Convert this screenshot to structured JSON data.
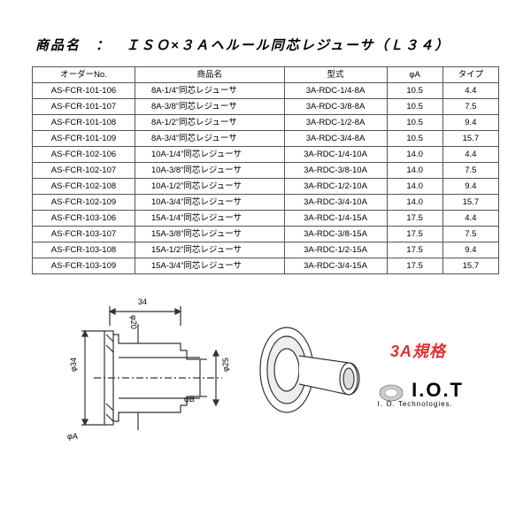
{
  "title": "商品名　：　ＩＳＯ×３Ａヘルール同芯レジューサ（Ｌ３４）",
  "columns": [
    "オーダーNo.",
    "商品名",
    "型式",
    "φA",
    "タイプ"
  ],
  "rows": [
    [
      "AS-FCR-101-106",
      "8A-1/4”同芯レジューサ",
      "3A-RDC-1/4-8A",
      "10.5",
      "4.4"
    ],
    [
      "AS-FCR-101-107",
      "8A-3/8”同芯レジューサ",
      "3A-RDC-3/8-8A",
      "10.5",
      "7.5"
    ],
    [
      "AS-FCR-101-108",
      "8A-1/2”同芯レジューサ",
      "3A-RDC-1/2-8A",
      "10.5",
      "9.4"
    ],
    [
      "AS-FCR-101-109",
      "8A-3/4”同芯レジューサ",
      "3A-RDC-3/4-8A",
      "10.5",
      "15.7"
    ],
    [
      "AS-FCR-102-106",
      "10A-1/4”同芯レジューサ",
      "3A-RDC-1/4-10A",
      "14.0",
      "4.4"
    ],
    [
      "AS-FCR-102-107",
      "10A-3/8”同芯レジューサ",
      "3A-RDC-3/8-10A",
      "14.0",
      "7.5"
    ],
    [
      "AS-FCR-102-108",
      "10A-1/2”同芯レジューサ",
      "3A-RDC-1/2-10A",
      "14.0",
      "9.4"
    ],
    [
      "AS-FCR-102-109",
      "10A-3/4”同芯レジューサ",
      "3A-RDC-3/4-10A",
      "14.0",
      "15.7"
    ],
    [
      "AS-FCR-103-106",
      "15A-1/4”同芯レジューサ",
      "3A-RDC-1/4-15A",
      "17.5",
      "4.4"
    ],
    [
      "AS-FCR-103-107",
      "15A-3/8”同芯レジューサ",
      "3A-RDC-3/8-15A",
      "17.5",
      "7.5"
    ],
    [
      "AS-FCR-103-108",
      "15A-1/2”同芯レジューサ",
      "3A-RDC-1/2-15A",
      "17.5",
      "9.4"
    ],
    [
      "AS-FCR-103-109",
      "15A-3/4”同芯レジューサ",
      "3A-RDC-3/4-15A",
      "17.5",
      "15.7"
    ]
  ],
  "drawing": {
    "dim_top": "34",
    "dim_inner_d": "φ20",
    "dim_left": "φ34",
    "dim_right": "φ25",
    "dim_b": "φB",
    "dim_a": "φA",
    "stroke": "#333333",
    "fill": "#ffffff",
    "shade": "#dddddd"
  },
  "spec_label": "3A規格",
  "logo": {
    "main": "I.O.T",
    "sub": "I. O. Technologies."
  },
  "colors": {
    "text": "#000000",
    "border": "#555555",
    "red": "#e03030",
    "bg": "#ffffff"
  }
}
